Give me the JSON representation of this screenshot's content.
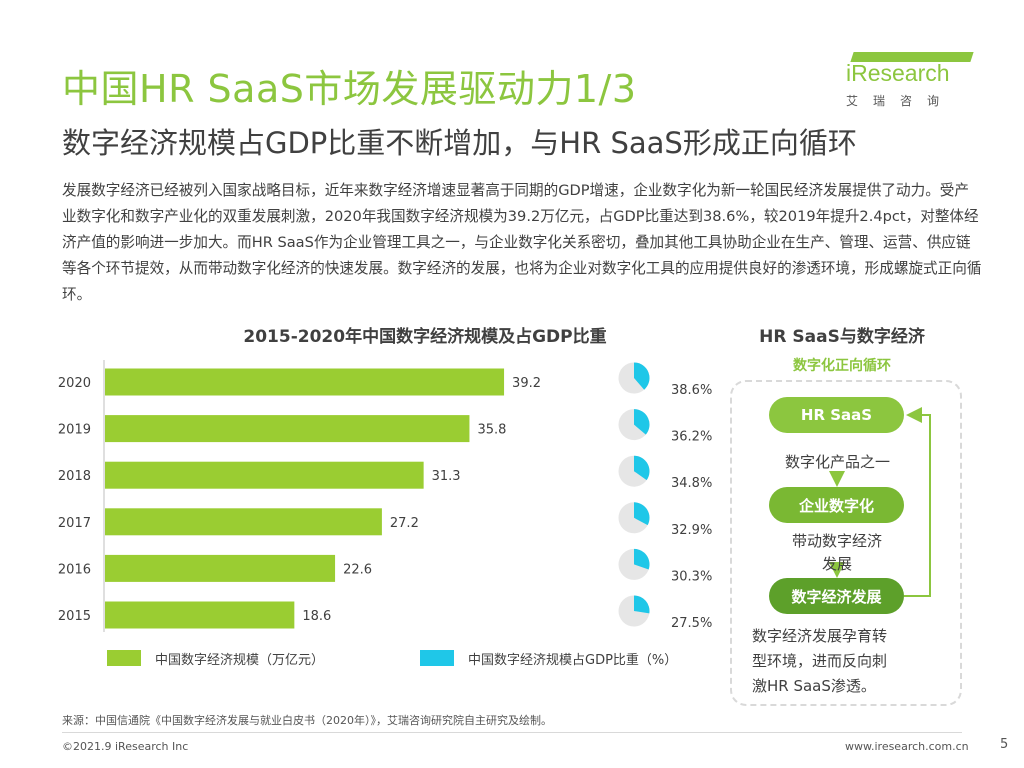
{
  "header": {
    "title": "中国HR SaaS市场发展驱动力1/3",
    "subtitle": "数字经济规模占GDP比重不断增加，与HR SaaS形成正向循环"
  },
  "logo": {
    "brand": "iResearch",
    "sub": "艾瑞咨询"
  },
  "body": {
    "paragraph": "发展数字经济已经被列入国家战略目标，近年来数字经济增速显著高于同期的GDP增速，企业数字化为新一轮国民经济发展提供了动力。受产业数字化和数字产业化的双重发展刺激，2020年我国数字经济规模为39.2万亿元，占GDP比重达到38.6%，较2019年提升2.4pct，对整体经济产值的影响进一步加大。而HR SaaS作为企业管理工具之一，与企业数字化关系密切，叠加其他工具协助企业在生产、管理、运营、供应链等各个环节提效，从而带动数字化经济的快速发展。数字经济的发展，也将为企业对数字化工具的应用提供良好的渗透环境，形成螺旋式正向循环。"
  },
  "chart_data": {
    "type": "bar",
    "title": "2015-2020年中国数字经济规模及占GDP比重",
    "categories": [
      "2020",
      "2019",
      "2018",
      "2017",
      "2016",
      "2015"
    ],
    "series": [
      {
        "name": "中国数字经济规模（万亿元）",
        "values": [
          39.2,
          35.8,
          31.3,
          27.2,
          22.6,
          18.6
        ]
      },
      {
        "name": "中国数字经济规模占GDP比重（%）",
        "values": [
          38.6,
          36.2,
          34.8,
          32.9,
          30.3,
          27.5
        ]
      }
    ],
    "value_labels": [
      "39.2",
      "35.8",
      "31.3",
      "27.2",
      "22.6",
      "18.6"
    ],
    "pct_labels": [
      "38.6%",
      "36.2%",
      "34.8%",
      "32.9%",
      "30.3%",
      "27.5%"
    ],
    "xlim": [
      0,
      40
    ],
    "grid": false,
    "legend_position": "bottom",
    "colors": {
      "bar": "#9acd32",
      "pie_share": "#1fc7e8",
      "pie_rest": "#e6e6e6"
    }
  },
  "legend": {
    "bar_label": "中国数字经济规模（万亿元）",
    "pie_label": "中国数字经济规模占GDP比重（%）"
  },
  "cycle": {
    "title": "HR SaaS与数字经济",
    "subtitle": "数字化正向循环",
    "node1": "HR SaaS",
    "text1": "数字化产品之一",
    "node2": "企业数字化",
    "text2_line1": "带动数字经济",
    "text2_line2": "发展",
    "node3": "数字经济发展",
    "text3_line1": "数字经济发展孕育转",
    "text3_line2": "型环境，进而反向刺",
    "text3_line3": "激HR SaaS渗透。"
  },
  "footer": {
    "source": "来源：中国信通院《中国数字经济发展与就业白皮书（2020年）》，艾瑞咨询研究院自主研究及绘制。",
    "copyright": "©2021.9 iResearch Inc",
    "website": "www.iresearch.com.cn",
    "page": "5"
  }
}
